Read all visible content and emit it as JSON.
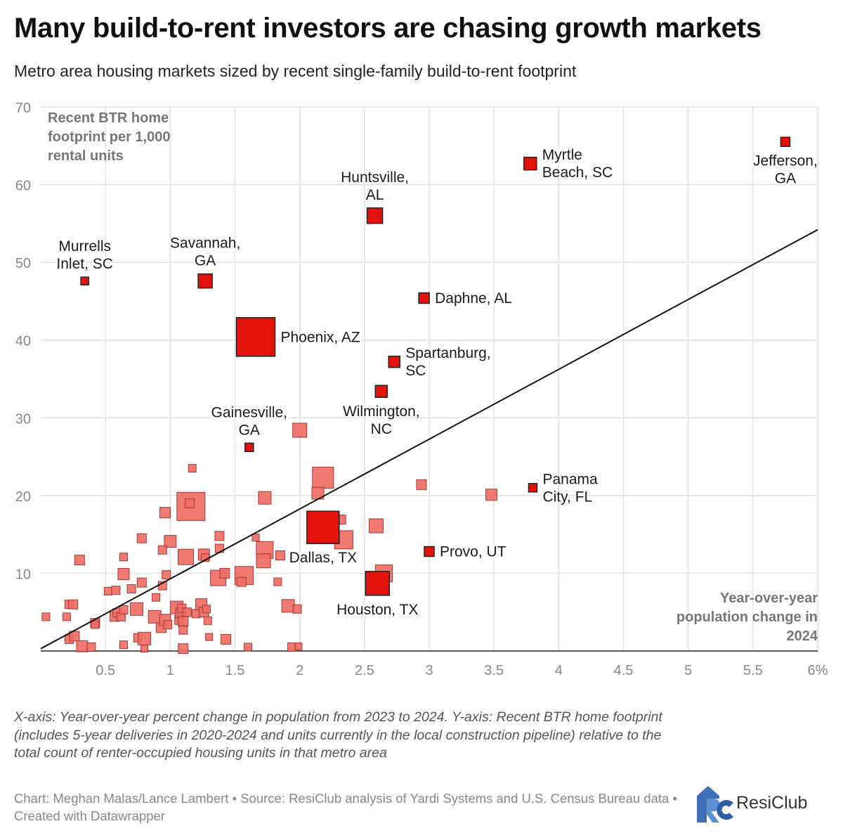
{
  "header": {
    "title": "Many build-to-rent investors are chasing growth markets",
    "subtitle": "Metro area housing markets sized by recent single-family build-to-rent footprint"
  },
  "chart_data": {
    "type": "scatter",
    "title": "Many build-to-rent investors are chasing growth markets",
    "y_title": [
      "Recent BTR home",
      "footprint per 1,000",
      "rental units"
    ],
    "x_title": [
      "Year-over-year",
      "population change in",
      "2024"
    ],
    "xlim": [
      0,
      6
    ],
    "ylim": [
      0,
      70
    ],
    "x_ticks": [
      0.5,
      1,
      1.5,
      2,
      2.5,
      3,
      3.5,
      4,
      4.5,
      5,
      5.5,
      6
    ],
    "x_tick_labels": [
      "0.5",
      "1",
      "1.5",
      "2",
      "2.5",
      "3",
      "3.5",
      "4",
      "4.5",
      "5",
      "5.5",
      "6%"
    ],
    "y_ticks": [
      10,
      20,
      30,
      40,
      50,
      60,
      70
    ],
    "y_tick_labels": [
      "10",
      "20",
      "30",
      "40",
      "50",
      "60",
      "70"
    ],
    "trendline": {
      "x": [
        0,
        6
      ],
      "y": [
        0.3,
        54.2
      ]
    },
    "colors": {
      "highlight": "#e3120b",
      "other": "#ee6b63",
      "grid": "#e1e1e1",
      "trend": "#111111"
    },
    "labeled_points": [
      {
        "name": "Jefferson, GA",
        "lines": [
          "Jefferson,",
          "GA"
        ],
        "x": 5.75,
        "y": 65.5,
        "size": 13,
        "label_pos": "below"
      },
      {
        "name": "Myrtle Beach, SC",
        "lines": [
          "Myrtle",
          "Beach, SC"
        ],
        "x": 3.78,
        "y": 62.7,
        "size": 18,
        "label_pos": "right"
      },
      {
        "name": "Huntsville, AL",
        "lines": [
          "Huntsville,",
          "AL"
        ],
        "x": 2.58,
        "y": 56.0,
        "size": 22,
        "label_pos": "above"
      },
      {
        "name": "Murrells Inlet, SC",
        "lines": [
          "Murrells",
          "Inlet, SC"
        ],
        "x": 0.34,
        "y": 47.6,
        "size": 11,
        "label_pos": "above"
      },
      {
        "name": "Savannah, GA",
        "lines": [
          "Savannah,",
          "GA"
        ],
        "x": 1.27,
        "y": 47.6,
        "size": 20,
        "label_pos": "above"
      },
      {
        "name": "Daphne, AL",
        "lines": [
          "Daphne, AL"
        ],
        "x": 2.96,
        "y": 45.4,
        "size": 15,
        "label_pos": "right"
      },
      {
        "name": "Phoenix, AZ",
        "lines": [
          "Phoenix, AZ"
        ],
        "x": 1.66,
        "y": 40.4,
        "size": 55,
        "label_pos": "right"
      },
      {
        "name": "Spartanburg, SC",
        "lines": [
          "Spartanburg,",
          "SC"
        ],
        "x": 2.73,
        "y": 37.2,
        "size": 16,
        "label_pos": "right"
      },
      {
        "name": "Wilmington, NC",
        "lines": [
          "Wilmington,",
          "NC"
        ],
        "x": 2.63,
        "y": 33.4,
        "size": 17,
        "label_pos": "below"
      },
      {
        "name": "Gainesville, GA",
        "lines": [
          "Gainesville,",
          "GA"
        ],
        "x": 1.61,
        "y": 26.2,
        "size": 12,
        "label_pos": "above"
      },
      {
        "name": "Panama City, FL",
        "lines": [
          "Panama",
          "City, FL"
        ],
        "x": 3.8,
        "y": 21.0,
        "size": 12,
        "label_pos": "right"
      },
      {
        "name": "Dallas, TX",
        "lines": [
          "Dallas, TX"
        ],
        "x": 2.18,
        "y": 15.9,
        "size": 46,
        "label_pos": "below"
      },
      {
        "name": "Provo, UT",
        "lines": [
          "Provo, UT"
        ],
        "x": 3.0,
        "y": 12.8,
        "size": 14,
        "label_pos": "right"
      },
      {
        "name": "Houston, TX",
        "lines": [
          "Houston, TX"
        ],
        "x": 2.6,
        "y": 8.7,
        "size": 34,
        "label_pos": "below"
      }
    ],
    "other_points": [
      {
        "x": 1.16,
        "y": 18.6,
        "size": 40
      },
      {
        "x": 2.18,
        "y": 22.3,
        "size": 30
      },
      {
        "x": 2.0,
        "y": 28.4,
        "size": 20
      },
      {
        "x": 2.59,
        "y": 16.1,
        "size": 20
      },
      {
        "x": 2.34,
        "y": 14.3,
        "size": 26
      },
      {
        "x": 2.32,
        "y": 16.9,
        "size": 13
      },
      {
        "x": 2.65,
        "y": 10.0,
        "size": 24
      },
      {
        "x": 1.73,
        "y": 19.7,
        "size": 18
      },
      {
        "x": 2.14,
        "y": 20.3,
        "size": 17
      },
      {
        "x": 2.94,
        "y": 21.4,
        "size": 14
      },
      {
        "x": 3.48,
        "y": 20.1,
        "size": 16
      },
      {
        "x": 1.17,
        "y": 23.5,
        "size": 11
      },
      {
        "x": 1.15,
        "y": 19.0,
        "size": 13
      },
      {
        "x": 0.96,
        "y": 17.8,
        "size": 15
      },
      {
        "x": 1.73,
        "y": 13.0,
        "size": 24
      },
      {
        "x": 1.72,
        "y": 11.6,
        "size": 20
      },
      {
        "x": 1.85,
        "y": 12.3,
        "size": 13
      },
      {
        "x": 1.57,
        "y": 9.7,
        "size": 26
      },
      {
        "x": 1.37,
        "y": 9.4,
        "size": 22
      },
      {
        "x": 1.42,
        "y": 10.0,
        "size": 14
      },
      {
        "x": 1.55,
        "y": 8.9,
        "size": 13
      },
      {
        "x": 1.38,
        "y": 14.8,
        "size": 13
      },
      {
        "x": 1.38,
        "y": 13.2,
        "size": 12
      },
      {
        "x": 1.66,
        "y": 14.6,
        "size": 10
      },
      {
        "x": 1.83,
        "y": 8.9,
        "size": 11
      },
      {
        "x": 1.26,
        "y": 12.4,
        "size": 16
      },
      {
        "x": 1.27,
        "y": 12.0,
        "size": 11
      },
      {
        "x": 1.12,
        "y": 12.1,
        "size": 22
      },
      {
        "x": 1.0,
        "y": 14.1,
        "size": 17
      },
      {
        "x": 0.94,
        "y": 13.0,
        "size": 12
      },
      {
        "x": 0.97,
        "y": 9.8,
        "size": 12
      },
      {
        "x": 0.94,
        "y": 8.4,
        "size": 12
      },
      {
        "x": 0.78,
        "y": 14.5,
        "size": 13
      },
      {
        "x": 0.64,
        "y": 12.1,
        "size": 11
      },
      {
        "x": 0.64,
        "y": 9.9,
        "size": 16
      },
      {
        "x": 0.78,
        "y": 8.8,
        "size": 13
      },
      {
        "x": 0.7,
        "y": 8.0,
        "size": 12
      },
      {
        "x": 0.3,
        "y": 11.7,
        "size": 14
      },
      {
        "x": 0.22,
        "y": 6.0,
        "size": 12
      },
      {
        "x": 0.25,
        "y": 6.0,
        "size": 13
      },
      {
        "x": 0.04,
        "y": 4.4,
        "size": 11
      },
      {
        "x": 0.2,
        "y": 4.4,
        "size": 11
      },
      {
        "x": 0.22,
        "y": 1.5,
        "size": 12
      },
      {
        "x": 0.26,
        "y": 1.9,
        "size": 14
      },
      {
        "x": 0.32,
        "y": 0.6,
        "size": 16
      },
      {
        "x": 0.39,
        "y": 0.5,
        "size": 12
      },
      {
        "x": 0.42,
        "y": 3.6,
        "size": 13
      },
      {
        "x": 0.42,
        "y": 3.4,
        "size": 11
      },
      {
        "x": 0.52,
        "y": 7.7,
        "size": 11
      },
      {
        "x": 0.57,
        "y": 4.4,
        "size": 13
      },
      {
        "x": 0.58,
        "y": 7.8,
        "size": 12
      },
      {
        "x": 0.59,
        "y": 4.9,
        "size": 12
      },
      {
        "x": 0.62,
        "y": 4.4,
        "size": 12
      },
      {
        "x": 0.64,
        "y": 5.3,
        "size": 12
      },
      {
        "x": 0.64,
        "y": 0.8,
        "size": 11
      },
      {
        "x": 0.74,
        "y": 5.4,
        "size": 18
      },
      {
        "x": 0.75,
        "y": 1.7,
        "size": 12
      },
      {
        "x": 0.8,
        "y": 1.6,
        "size": 18
      },
      {
        "x": 0.8,
        "y": 0.3,
        "size": 10
      },
      {
        "x": 0.88,
        "y": 4.4,
        "size": 18
      },
      {
        "x": 0.89,
        "y": 6.9,
        "size": 11
      },
      {
        "x": 0.93,
        "y": 3.0,
        "size": 14
      },
      {
        "x": 0.96,
        "y": 4.0,
        "size": 16
      },
      {
        "x": 0.98,
        "y": 3.4,
        "size": 12
      },
      {
        "x": 1.05,
        "y": 5.6,
        "size": 18
      },
      {
        "x": 1.07,
        "y": 4.0,
        "size": 13
      },
      {
        "x": 1.08,
        "y": 4.9,
        "size": 14
      },
      {
        "x": 1.09,
        "y": 5.5,
        "size": 12
      },
      {
        "x": 1.1,
        "y": 3.8,
        "size": 14
      },
      {
        "x": 1.1,
        "y": 2.7,
        "size": 12
      },
      {
        "x": 1.1,
        "y": 0.3,
        "size": 14
      },
      {
        "x": 1.13,
        "y": 5.0,
        "size": 12
      },
      {
        "x": 1.2,
        "y": 4.8,
        "size": 12
      },
      {
        "x": 1.24,
        "y": 6.0,
        "size": 16
      },
      {
        "x": 1.26,
        "y": 5.0,
        "size": 14
      },
      {
        "x": 1.28,
        "y": 5.4,
        "size": 11
      },
      {
        "x": 1.29,
        "y": 3.9,
        "size": 11
      },
      {
        "x": 1.3,
        "y": 1.8,
        "size": 10
      },
      {
        "x": 1.43,
        "y": 1.5,
        "size": 14
      },
      {
        "x": 1.6,
        "y": 0.5,
        "size": 11
      },
      {
        "x": 1.91,
        "y": 5.8,
        "size": 18
      },
      {
        "x": 1.98,
        "y": 5.4,
        "size": 12
      },
      {
        "x": 1.94,
        "y": 0.5,
        "size": 12
      },
      {
        "x": 1.99,
        "y": 0.6,
        "size": 10
      }
    ]
  },
  "footer": {
    "note": "X-axis: Year-over-year percent change in population from 2023 to 2024. Y-axis: Recent BTR home footprint (includes 5-year deliveries in 2020-2024 and units currently in the local construction pipeline) relative to the total count of renter-occupied housing units in that metro area",
    "credit": "Chart: Meghan Malas/Lance Lambert • Source: ResiClub analysis of Yardi Systems and U.S. Census Bureau data • Created with Datawrapper",
    "logo_text": "ResiClub"
  }
}
